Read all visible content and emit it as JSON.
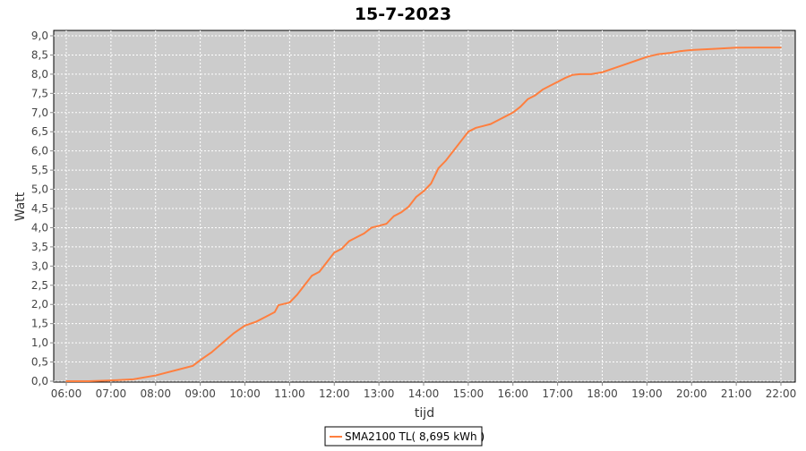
{
  "chart_data": {
    "type": "line",
    "title": "15-7-2023",
    "xlabel": "tijd",
    "ylabel": "Watt",
    "xlim": [
      "06:00",
      "22:00"
    ],
    "ylim": [
      0,
      9
    ],
    "grid": true,
    "legend_position": "bottom",
    "x_ticks": [
      "06:00",
      "07:00",
      "08:00",
      "09:00",
      "10:00",
      "11:00",
      "12:00",
      "13:00",
      "14:00",
      "15:00",
      "16:00",
      "17:00",
      "18:00",
      "19:00",
      "20:00",
      "21:00",
      "22:00"
    ],
    "y_ticks": [
      "0,0",
      "0,5",
      "1,0",
      "1,5",
      "2,0",
      "2,5",
      "3,0",
      "3,5",
      "4,0",
      "4,5",
      "5,0",
      "5,5",
      "6,0",
      "6,5",
      "7,0",
      "7,5",
      "8,0",
      "8,5",
      "9,0"
    ],
    "colors": {
      "plot_background": "#cccccc",
      "line": "#ff7f3f",
      "grid": "#ffffff"
    },
    "series": [
      {
        "name": "SMA2100 TL( 8,695 kWh )",
        "x": [
          "06:00",
          "06:30",
          "07:00",
          "07:30",
          "08:00",
          "08:30",
          "08:50",
          "09:00",
          "09:15",
          "09:30",
          "09:45",
          "10:00",
          "10:15",
          "10:30",
          "10:40",
          "10:45",
          "11:00",
          "11:10",
          "11:20",
          "11:30",
          "11:40",
          "11:50",
          "12:00",
          "12:10",
          "12:20",
          "12:30",
          "12:40",
          "12:50",
          "13:00",
          "13:10",
          "13:20",
          "13:30",
          "13:40",
          "13:50",
          "14:00",
          "14:10",
          "14:20",
          "14:30",
          "14:40",
          "14:50",
          "15:00",
          "15:10",
          "15:20",
          "15:30",
          "15:40",
          "15:50",
          "16:00",
          "16:10",
          "16:20",
          "16:30",
          "16:40",
          "16:50",
          "17:00",
          "17:10",
          "17:20",
          "17:30",
          "17:45",
          "18:00",
          "18:15",
          "18:30",
          "18:45",
          "19:00",
          "19:15",
          "19:30",
          "19:45",
          "20:00",
          "20:30",
          "21:00",
          "21:30",
          "22:00"
        ],
        "values": [
          0,
          0,
          0.02,
          0.05,
          0.15,
          0.3,
          0.4,
          0.55,
          0.75,
          1.0,
          1.25,
          1.45,
          1.55,
          1.7,
          1.8,
          1.98,
          2.05,
          2.25,
          2.5,
          2.75,
          2.85,
          3.1,
          3.35,
          3.45,
          3.65,
          3.75,
          3.85,
          4.0,
          4.05,
          4.1,
          4.3,
          4.4,
          4.55,
          4.8,
          4.95,
          5.15,
          5.55,
          5.75,
          6.0,
          6.25,
          6.5,
          6.6,
          6.65,
          6.7,
          6.8,
          6.9,
          7.0,
          7.15,
          7.35,
          7.45,
          7.6,
          7.7,
          7.8,
          7.9,
          7.98,
          8.0,
          8.0,
          8.05,
          8.15,
          8.25,
          8.35,
          8.45,
          8.52,
          8.55,
          8.6,
          8.63,
          8.66,
          8.69,
          8.695,
          8.695
        ]
      }
    ]
  }
}
